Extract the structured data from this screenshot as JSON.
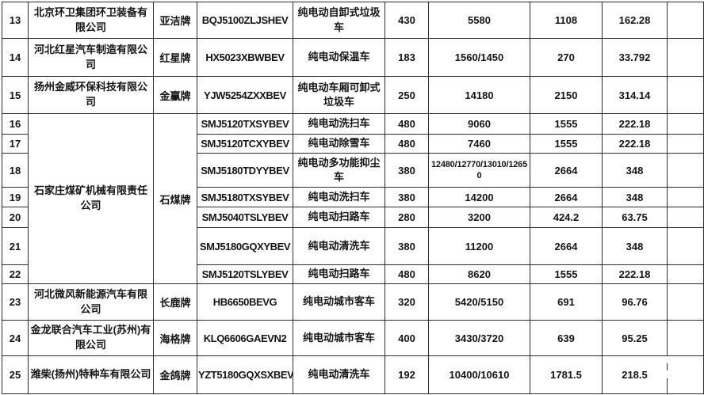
{
  "table": {
    "rows": [
      {
        "no": "13",
        "company": "北京环卫集团环卫装备有限公司",
        "brand": "亚洁牌",
        "model": "BQJ5100ZLJSHEV",
        "type": "纯电动自卸式垃圾车",
        "v1": "430",
        "v2": "5580",
        "v3": "1108",
        "v4": "162.28",
        "extra": ""
      },
      {
        "no": "14",
        "company": "河北红星汽车制造有限公司",
        "brand": "红星牌",
        "model": "HX5023XBWBEV",
        "type": "纯电动保温车",
        "v1": "183",
        "v2": "1560/1450",
        "v3": "270",
        "v4": "33.792",
        "extra": ""
      },
      {
        "no": "15",
        "company": "扬州金威环保科技有限公司",
        "brand": "金鸁牌",
        "model": "YJW5254ZXXBEV",
        "type": "纯电动车厢可卸式垃圾车",
        "v1": "250",
        "v2": "14180",
        "v3": "2150",
        "v4": "314.14",
        "extra": ""
      },
      {
        "no": "16",
        "company": "石家庄煤矿机械有限责任公司",
        "company_span": 7,
        "brand": "石煤牌",
        "brand_span": 7,
        "model": "SMJ5120TXSYBEV",
        "type": "纯电动洗扫车",
        "v1": "480",
        "v2": "9060",
        "v3": "1555",
        "v4": "222.18",
        "extra": ""
      },
      {
        "no": "17",
        "model": "SMJ5120TCXYBEV",
        "type": "纯电动除雪车",
        "v1": "480",
        "v2": "7460",
        "v3": "1555",
        "v4": "222.18",
        "extra": ""
      },
      {
        "no": "18",
        "model": "SMJ5180TDYYBEV",
        "type": "纯电动多功能抑尘车",
        "v1": "380",
        "v2": "12480/12770/13010/12650",
        "v3": "2664",
        "v4": "348",
        "extra": ""
      },
      {
        "no": "19",
        "model": "SMJ5180TXSYBEV",
        "type": "纯电动洗扫车",
        "v1": "380",
        "v2": "14200",
        "v3": "2664",
        "v4": "348",
        "extra": ""
      },
      {
        "no": "20",
        "model": "SMJ5040TSLYBEV",
        "type": "纯电动扫路车",
        "v1": "280",
        "v2": "3200",
        "v3": "424.2",
        "v4": "63.75",
        "extra": ""
      },
      {
        "no": "21",
        "model": "SMJ5180GQXYBEV",
        "type": "纯电动清洗车",
        "v1": "380",
        "v2": "11200",
        "v3": "2664",
        "v4": "348",
        "extra": ""
      },
      {
        "no": "22",
        "model": "SMJ5120TSLYBEV",
        "type": "纯电动扫路车",
        "v1": "480",
        "v2": "8620",
        "v3": "1555",
        "v4": "222.18",
        "extra": ""
      },
      {
        "no": "23",
        "company": "河北微风新能源汽车有限公司",
        "brand": "长鹿牌",
        "model": "HB6650BEVG",
        "type": "纯电动城市客车",
        "v1": "320",
        "v2": "5420/5150",
        "v3": "691",
        "v4": "96.76",
        "extra": ""
      },
      {
        "no": "24",
        "company": "金龙联合汽车工业(苏州)有限公司",
        "brand": "海格牌",
        "model": "KLQ6606GAEVN2",
        "type": "纯电动城市客车",
        "v1": "400",
        "v2": "3430/3720",
        "v3": "639",
        "v4": "95.25",
        "extra": ""
      },
      {
        "no": "25",
        "company": "潍柴(扬州)特种车有限公司",
        "brand": "金鸽牌",
        "model": "YZT5180GQXSXBEV",
        "type": "纯电动清洗车",
        "v1": "192",
        "v2": "10400/10610",
        "v3": "1781.5",
        "v4": "218.5",
        "extra": ""
      }
    ]
  },
  "colors": {
    "border": "#2e2e2e",
    "text": "#141414",
    "background": "#ffffff"
  }
}
